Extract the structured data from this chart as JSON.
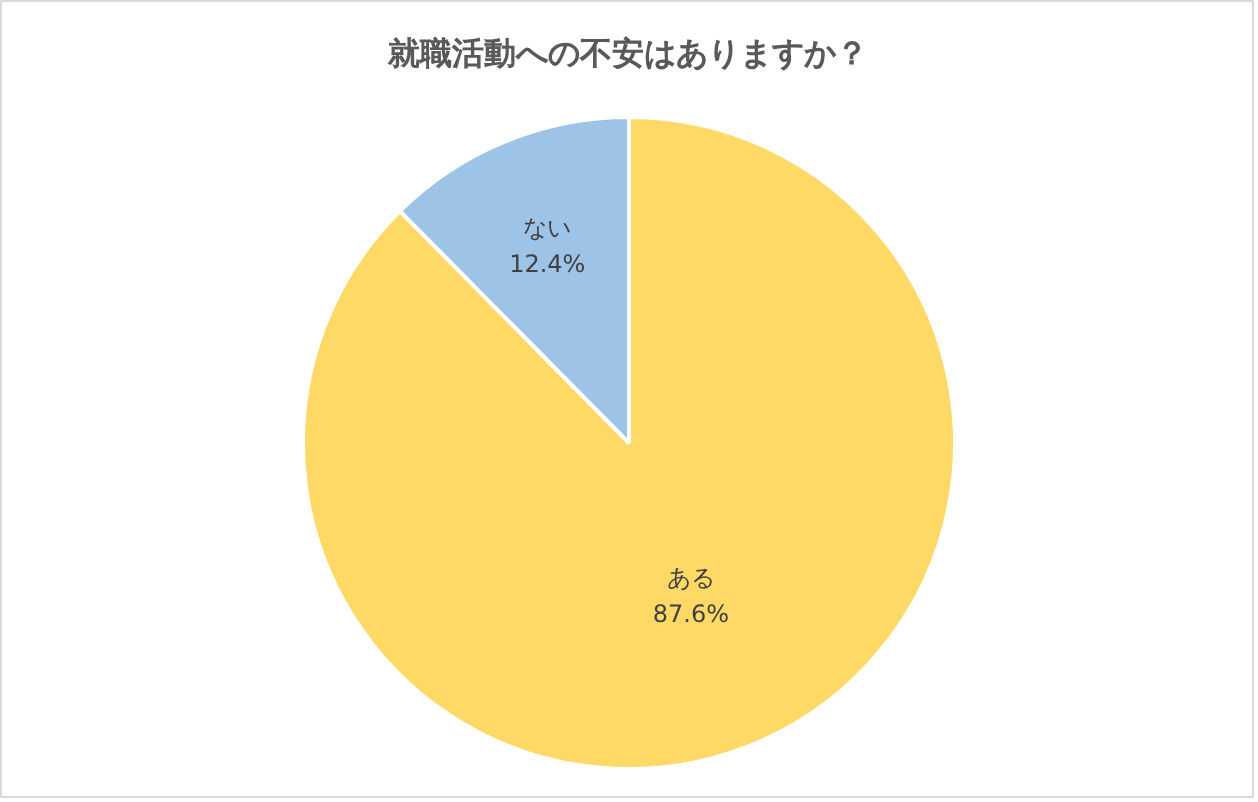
{
  "chart_data": {
    "type": "pie",
    "title": "就職活動への不安はありますか？",
    "categories": [
      "ある",
      "ない"
    ],
    "values": [
      87.6,
      12.4
    ],
    "colors": [
      "#ffd966",
      "#9dc3e6"
    ],
    "value_labels": [
      "87.6%",
      "12.4%"
    ]
  }
}
